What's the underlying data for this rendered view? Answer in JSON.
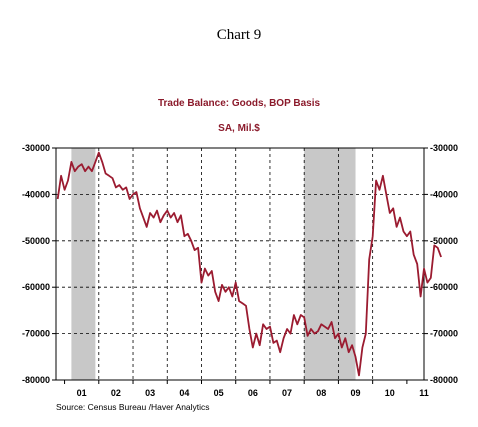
{
  "page_title": "Chart 9",
  "chart_data": {
    "type": "line",
    "title": "Trade Balance: Goods, BOP Basis",
    "subtitle": "SA, Mil.$",
    "source": "Source:  Census Bureau /Haver Analytics",
    "x_unit": "year",
    "xlim": [
      2000.75,
      2011.5
    ],
    "ylim": [
      -80000,
      -30000
    ],
    "y_ticks": [
      -30000,
      -40000,
      -50000,
      -60000,
      -70000,
      -80000
    ],
    "y_tick_labels": [
      "-30000",
      "-40000",
      "-50000",
      "-60000",
      "-70000",
      "-80000"
    ],
    "y_axis_both_sides": true,
    "x_tick_labels": [
      {
        "label": "01",
        "x": 2001.5
      },
      {
        "label": "02",
        "x": 2002.5
      },
      {
        "label": "03",
        "x": 2003.5
      },
      {
        "label": "04",
        "x": 2004.5
      },
      {
        "label": "05",
        "x": 2005.5
      },
      {
        "label": "06",
        "x": 2006.5
      },
      {
        "label": "07",
        "x": 2007.5
      },
      {
        "label": "08",
        "x": 2008.5
      },
      {
        "label": "09",
        "x": 2009.5
      },
      {
        "label": "10",
        "x": 2010.5
      },
      {
        "label": "11",
        "x": 2011.5
      }
    ],
    "vertical_gridlines_x": [
      2002,
      2003,
      2004,
      2005,
      2006,
      2007,
      2008,
      2009,
      2010
    ],
    "grid": "dashed",
    "recessions": [
      {
        "start": 2001.2,
        "end": 2001.9
      },
      {
        "start": 2008.0,
        "end": 2009.5
      }
    ],
    "recession_color": "#c8c8c8",
    "series": [
      {
        "color": "#9b1b30",
        "points": [
          [
            2000.8,
            -41000
          ],
          [
            2000.9,
            -36000
          ],
          [
            2001.0,
            -39000
          ],
          [
            2001.1,
            -37000
          ],
          [
            2001.2,
            -33000
          ],
          [
            2001.3,
            -35000
          ],
          [
            2001.4,
            -34000
          ],
          [
            2001.5,
            -33500
          ],
          [
            2001.6,
            -35000
          ],
          [
            2001.7,
            -34000
          ],
          [
            2001.8,
            -35000
          ],
          [
            2001.9,
            -33000
          ],
          [
            2002.0,
            -31000
          ],
          [
            2002.1,
            -33000
          ],
          [
            2002.2,
            -35500
          ],
          [
            2002.3,
            -36000
          ],
          [
            2002.4,
            -36500
          ],
          [
            2002.5,
            -38500
          ],
          [
            2002.6,
            -38000
          ],
          [
            2002.7,
            -39000
          ],
          [
            2002.8,
            -38500
          ],
          [
            2002.9,
            -41000
          ],
          [
            2003.0,
            -40000
          ],
          [
            2003.1,
            -39500
          ],
          [
            2003.2,
            -43000
          ],
          [
            2003.3,
            -45000
          ],
          [
            2003.4,
            -47000
          ],
          [
            2003.5,
            -44000
          ],
          [
            2003.6,
            -45000
          ],
          [
            2003.7,
            -43500
          ],
          [
            2003.8,
            -46000
          ],
          [
            2003.9,
            -44500
          ],
          [
            2004.0,
            -43500
          ],
          [
            2004.1,
            -45000
          ],
          [
            2004.2,
            -44000
          ],
          [
            2004.3,
            -46000
          ],
          [
            2004.4,
            -44500
          ],
          [
            2004.5,
            -49000
          ],
          [
            2004.6,
            -48500
          ],
          [
            2004.7,
            -50000
          ],
          [
            2004.8,
            -52000
          ],
          [
            2004.9,
            -51500
          ],
          [
            2005.0,
            -59000
          ],
          [
            2005.1,
            -56000
          ],
          [
            2005.2,
            -57500
          ],
          [
            2005.3,
            -56500
          ],
          [
            2005.4,
            -61000
          ],
          [
            2005.5,
            -63000
          ],
          [
            2005.6,
            -59500
          ],
          [
            2005.7,
            -61000
          ],
          [
            2005.8,
            -60000
          ],
          [
            2005.9,
            -62000
          ],
          [
            2006.0,
            -59000
          ],
          [
            2006.1,
            -63000
          ],
          [
            2006.2,
            -63500
          ],
          [
            2006.3,
            -64000
          ],
          [
            2006.4,
            -69000
          ],
          [
            2006.5,
            -73000
          ],
          [
            2006.6,
            -70000
          ],
          [
            2006.7,
            -72500
          ],
          [
            2006.8,
            -68000
          ],
          [
            2006.9,
            -69000
          ],
          [
            2007.0,
            -68500
          ],
          [
            2007.1,
            -72000
          ],
          [
            2007.2,
            -71500
          ],
          [
            2007.3,
            -74000
          ],
          [
            2007.4,
            -71000
          ],
          [
            2007.5,
            -69000
          ],
          [
            2007.6,
            -70000
          ],
          [
            2007.7,
            -66000
          ],
          [
            2007.8,
            -68000
          ],
          [
            2007.9,
            -66000
          ],
          [
            2008.0,
            -66500
          ],
          [
            2008.1,
            -70500
          ],
          [
            2008.2,
            -69000
          ],
          [
            2008.3,
            -70000
          ],
          [
            2008.4,
            -69500
          ],
          [
            2008.5,
            -68000
          ],
          [
            2008.6,
            -68500
          ],
          [
            2008.7,
            -69000
          ],
          [
            2008.8,
            -67500
          ],
          [
            2008.9,
            -71000
          ],
          [
            2009.0,
            -70000
          ],
          [
            2009.1,
            -73000
          ],
          [
            2009.2,
            -71000
          ],
          [
            2009.3,
            -74000
          ],
          [
            2009.4,
            -72500
          ],
          [
            2009.5,
            -75000
          ],
          [
            2009.6,
            -79000
          ],
          [
            2009.7,
            -73000
          ],
          [
            2009.8,
            -70000
          ],
          [
            2009.9,
            -54000
          ],
          [
            2010.0,
            -49000
          ],
          [
            2010.1,
            -37000
          ],
          [
            2010.2,
            -39000
          ],
          [
            2010.3,
            -36000
          ],
          [
            2010.4,
            -40000
          ],
          [
            2010.5,
            -44000
          ],
          [
            2010.6,
            -43000
          ],
          [
            2010.7,
            -47000
          ],
          [
            2010.8,
            -45000
          ],
          [
            2010.9,
            -48000
          ],
          [
            2011.0,
            -49000
          ],
          [
            2011.1,
            -48000
          ],
          [
            2011.2,
            -53000
          ],
          [
            2011.3,
            -55000
          ],
          [
            2011.4,
            -62000
          ],
          [
            2011.5,
            -56000
          ],
          [
            2011.6,
            -59000
          ],
          [
            2011.7,
            -58000
          ],
          [
            2011.8,
            -51000
          ],
          [
            2011.9,
            -51500
          ],
          [
            2012.0,
            -53500
          ]
        ]
      }
    ]
  }
}
